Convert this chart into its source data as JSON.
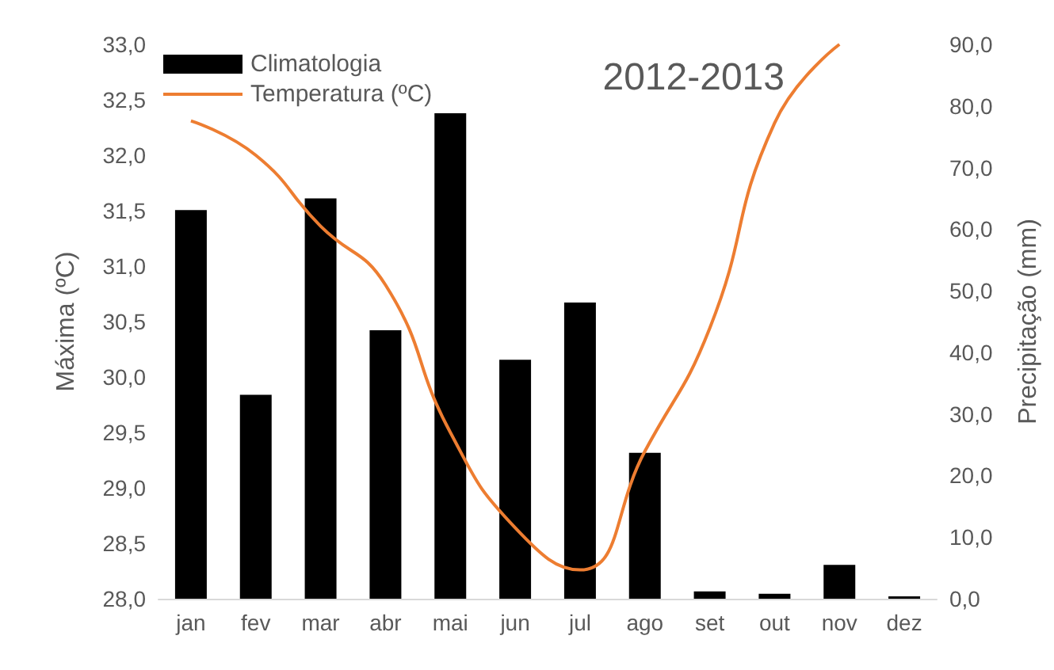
{
  "chart_data": {
    "type": "bar",
    "title": "2012-2013",
    "ylabel": "Máxima (ºC)",
    "y2label": "Precipitação (mm)",
    "categories": [
      "jan",
      "fev",
      "mar",
      "abr",
      "mai",
      "jun",
      "jul",
      "ago",
      "set",
      "out",
      "nov",
      "dez"
    ],
    "series": [
      {
        "name": "Climatologia",
        "axis": "y2",
        "color": "#000000",
        "values": [
          63.1,
          33.1,
          65.0,
          43.6,
          78.8,
          38.8,
          48.1,
          23.7,
          1.2,
          0.8,
          5.5,
          0.4
        ]
      },
      {
        "name": "Temperatura (ºC)",
        "type": "line",
        "color": "#ed7d31",
        "values": [
          32.31,
          32.0,
          31.36,
          30.83,
          29.5,
          28.64,
          28.26,
          29.33,
          30.44,
          32.29,
          33.0,
          null
        ]
      }
    ],
    "ylim": [
      28,
      33
    ],
    "yticks": [
      {
        "value": 28,
        "label": "28,0"
      },
      {
        "value": 28.5,
        "label": "28,5"
      },
      {
        "value": 29,
        "label": "29,0"
      },
      {
        "value": 29.5,
        "label": "29,5"
      },
      {
        "value": 30,
        "label": "30,0"
      },
      {
        "value": 30.5,
        "label": "30,5"
      },
      {
        "value": 31,
        "label": "31,0"
      },
      {
        "value": 31.5,
        "label": "31,5"
      },
      {
        "value": 32,
        "label": "32,0"
      },
      {
        "value": 32.5,
        "label": "32,5"
      },
      {
        "value": 33,
        "label": "33,0"
      }
    ],
    "y2lim": [
      0,
      90
    ],
    "y2ticks": [
      {
        "value": 0,
        "label": "0,0"
      },
      {
        "value": 10,
        "label": "10,0"
      },
      {
        "value": 20,
        "label": "20,0"
      },
      {
        "value": 30,
        "label": "30,0"
      },
      {
        "value": 40,
        "label": "40,0"
      },
      {
        "value": 50,
        "label": "50,0"
      },
      {
        "value": 60,
        "label": "60,0"
      },
      {
        "value": 70,
        "label": "70,0"
      },
      {
        "value": 80,
        "label": "80,0"
      },
      {
        "value": 90,
        "label": "90,0"
      }
    ],
    "grid": false,
    "legend": "top left",
    "marker": "none"
  }
}
